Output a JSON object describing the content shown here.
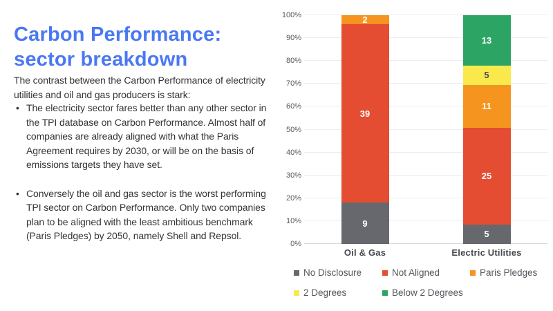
{
  "slide": {
    "title_line1": "Carbon Performance:",
    "title_line2": "sector breakdown",
    "title_color": "#4A78F2",
    "intro": "The contrast between the Carbon Performance of electricity utilities and oil and gas producers is stark:",
    "bullets": [
      "The electricity sector fares better than any other sector in the TPI database on Carbon Performance. Almost half of companies are already aligned with what the Paris Agreement requires by 2030, or will be on the basis of emissions targets they have set.",
      "Conversely the oil and gas sector is the worst performing TPI sector on Carbon Performance. Only two companies plan to be aligned with the least ambitious benchmark (Paris Pledges) by 2050, namely Shell and Repsol."
    ]
  },
  "chart_data": {
    "type": "bar",
    "subtype": "stacked-100-percent",
    "categories": [
      "Oil & Gas",
      "Electric Utilities"
    ],
    "series": [
      {
        "name": "No Disclosure",
        "color": "#67686D",
        "values": [
          9,
          5
        ]
      },
      {
        "name": "Not Aligned",
        "color": "#E54D33",
        "values": [
          39,
          25
        ]
      },
      {
        "name": "Paris Pledges",
        "color": "#F5941F",
        "values": [
          2,
          11
        ]
      },
      {
        "name": "2 Degrees",
        "color": "#F9E94C",
        "label_color": "#4B4C51",
        "values": [
          0,
          5
        ]
      },
      {
        "name": "Below 2 Degrees",
        "color": "#2CA564",
        "values": [
          0,
          13
        ]
      }
    ],
    "y_ticks": [
      "0%",
      "10%",
      "20%",
      "30%",
      "40%",
      "50%",
      "60%",
      "70%",
      "80%",
      "90%",
      "100%"
    ],
    "ylim": [
      0,
      100
    ],
    "grid": true,
    "legend_position": "bottom",
    "legend_rows": [
      [
        "No Disclosure",
        "Not Aligned",
        "Paris Pledges"
      ],
      [
        "2 Degrees",
        "Below 2 Degrees"
      ]
    ]
  }
}
